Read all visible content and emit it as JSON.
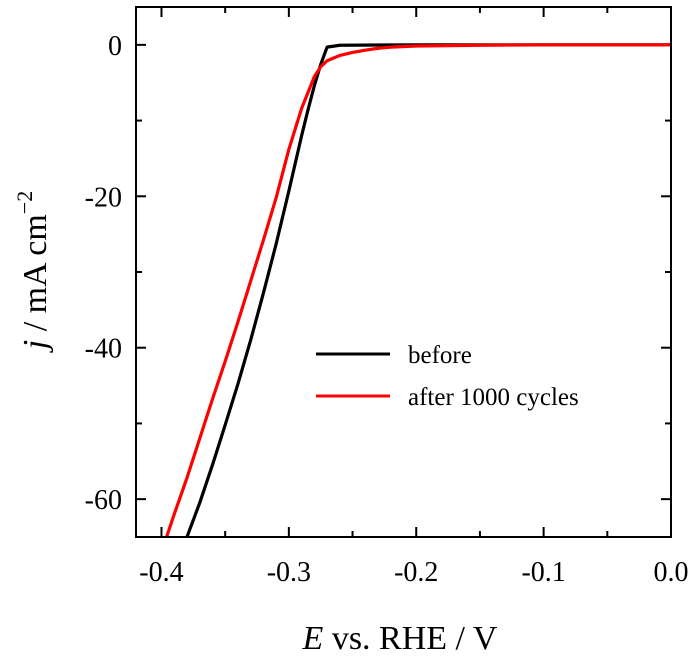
{
  "chart_data": {
    "type": "line",
    "xlabel": {
      "italic": "E",
      "rest": " vs. RHE / V"
    },
    "ylabel": {
      "italic": "j",
      "rest": " / mA cm",
      "sup": "−2"
    },
    "xlim": [
      -0.42,
      0.0
    ],
    "ylim": [
      -65,
      5
    ],
    "x_ticks": [
      -0.4,
      -0.3,
      -0.2,
      -0.1,
      0.0
    ],
    "x_tick_labels": [
      "-0.4",
      "-0.3",
      "-0.2",
      "-0.1",
      "0.0"
    ],
    "y_ticks": [
      0,
      -20,
      -40,
      -60
    ],
    "y_tick_labels": [
      "0",
      "-20",
      "-40",
      "-60"
    ],
    "legend_position": "center-right",
    "series": [
      {
        "name": "before",
        "color": "#000000",
        "x": [
          -0.38,
          -0.37,
          -0.36,
          -0.35,
          -0.34,
          -0.33,
          -0.32,
          -0.31,
          -0.3,
          -0.29,
          -0.285,
          -0.28,
          -0.275,
          -0.27,
          -0.26,
          -0.2,
          -0.1,
          0.0
        ],
        "y": [
          -65,
          -60.5,
          -55.5,
          -50.2,
          -44.8,
          -39.0,
          -32.8,
          -26.3,
          -19.3,
          -12.0,
          -8.6,
          -5.4,
          -2.6,
          -0.3,
          -0.05,
          0,
          0,
          0
        ]
      },
      {
        "name": "after 1000 cycles",
        "color": "#ff0000",
        "x": [
          -0.396,
          -0.39,
          -0.38,
          -0.37,
          -0.36,
          -0.35,
          -0.34,
          -0.33,
          -0.32,
          -0.31,
          -0.3,
          -0.29,
          -0.28,
          -0.275,
          -0.27,
          -0.26,
          -0.25,
          -0.24,
          -0.23,
          -0.22,
          -0.2,
          -0.15,
          -0.1,
          0.0
        ],
        "y": [
          -65,
          -62.0,
          -57.2,
          -52.0,
          -46.8,
          -41.8,
          -36.6,
          -31.2,
          -25.8,
          -20.2,
          -13.8,
          -8.4,
          -4.2,
          -2.9,
          -2.1,
          -1.4,
          -1.0,
          -0.7,
          -0.45,
          -0.3,
          -0.15,
          -0.05,
          0,
          0
        ]
      }
    ]
  }
}
